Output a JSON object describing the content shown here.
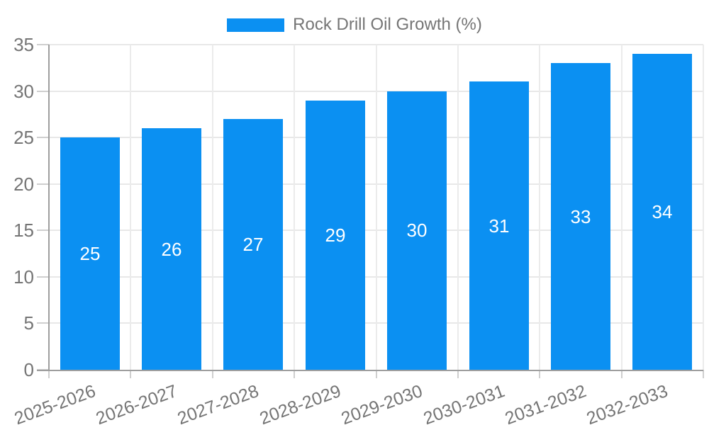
{
  "chart_data": {
    "type": "bar",
    "series_name": "Rock Drill Oil Growth (%)",
    "categories": [
      "2025-2026",
      "2026-2027",
      "2027-2028",
      "2028-2029",
      "2029-2030",
      "2030-2031",
      "2031-2032",
      "2032-2033"
    ],
    "values": [
      25,
      26,
      27,
      29,
      30,
      31,
      33,
      34
    ],
    "ylim": [
      0,
      35
    ],
    "yticks": [
      0,
      5,
      10,
      15,
      20,
      25,
      30,
      35
    ],
    "grid": true,
    "legend_position": "top",
    "x_label_rotation_deg": -20,
    "bar_color": "#0B90F2",
    "value_label_color": "#ffffff",
    "axis_text_color": "#757575"
  }
}
